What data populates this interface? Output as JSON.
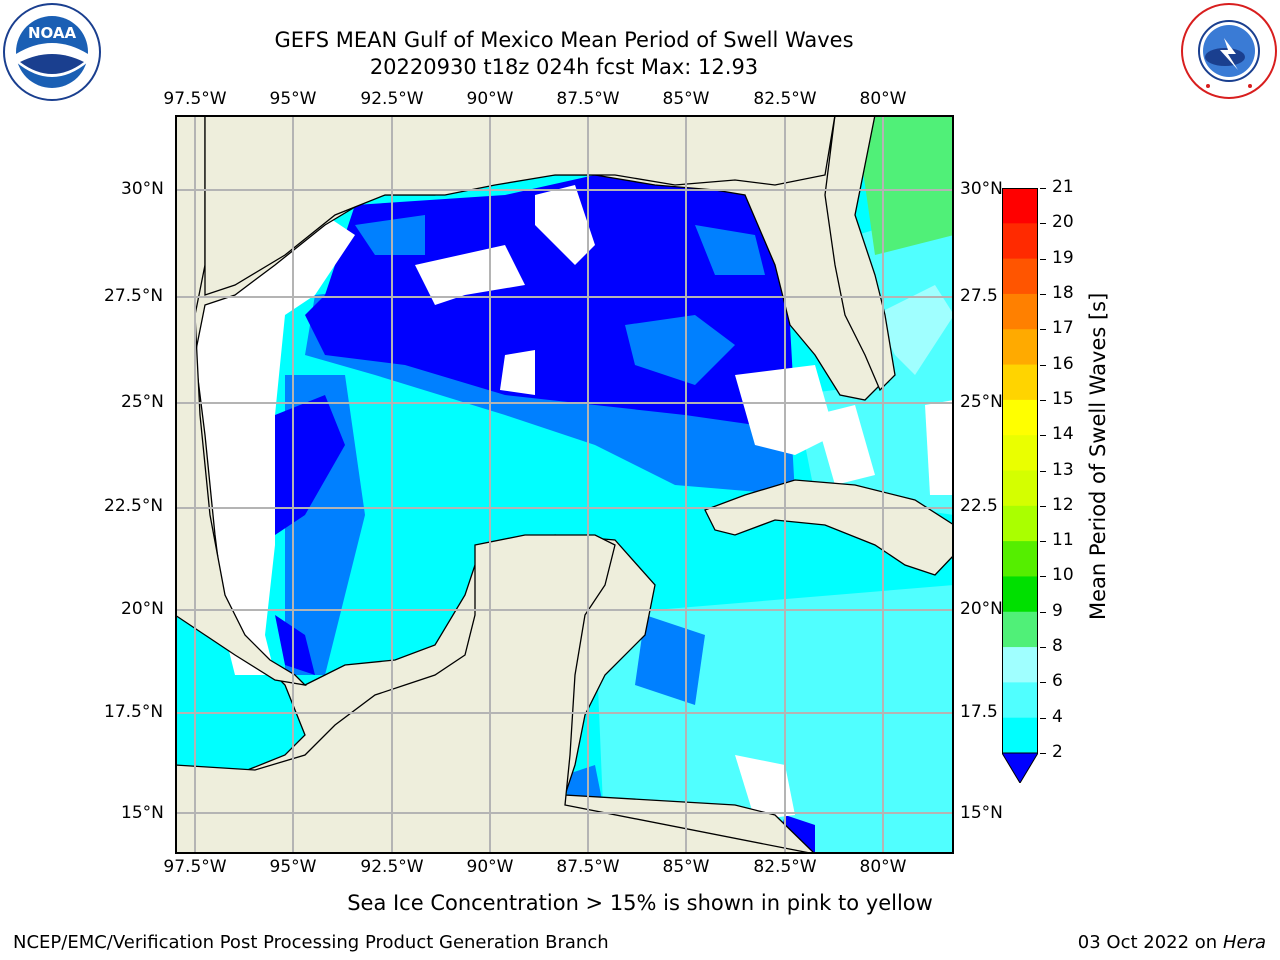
{
  "header": {
    "title_line1": "GEFS MEAN Gulf of Mexico Mean Period of Swell Waves",
    "title_line2": "20220930 t18z 024h fcst   Max: 12.93"
  },
  "logos": {
    "noaa_label": "NOAA",
    "noaa_ring_text": "NATIONAL OCEANIC AND ATMOSPHERIC ADMINISTRATION · U.S. DEPARTMENT OF COMMERCE",
    "nws_ring_text": "NATIONAL WEATHER SERVICE"
  },
  "map": {
    "lon_labels": [
      "97.5°W",
      "95°W",
      "92.5°W",
      "90°W",
      "87.5°W",
      "85°W",
      "82.5°W",
      "80°W"
    ],
    "lat_labels_left": [
      "30°N",
      "27.5°N",
      "25°N",
      "22.5°N",
      "20°N",
      "17.5°N",
      "15°N"
    ],
    "lat_labels_right": [
      "30°N",
      "27.5",
      "25°N",
      "22.5",
      "20°N",
      "17.5",
      "15°N"
    ],
    "colors": {
      "land": "#eeeedc",
      "no_data": "#ffffff",
      "grid": "#b4b4b4",
      "coast": "#000000"
    }
  },
  "colorbar": {
    "label": "Mean Period of Swell Waves [s]",
    "ticks": [
      "21",
      "20",
      "19",
      "18",
      "17",
      "16",
      "15",
      "14",
      "13",
      "12",
      "11",
      "10",
      "9",
      "8",
      "6",
      "4",
      "2"
    ],
    "colors": [
      "#ff0000",
      "#ff2a00",
      "#ff5500",
      "#ff8000",
      "#ffaa00",
      "#ffd400",
      "#ffff00",
      "#eaff00",
      "#d4ff00",
      "#aaff00",
      "#55ee00",
      "#00e000",
      "#50f078",
      "#a0ffff",
      "#50ffff",
      "#00ffff",
      "#0080ff",
      "#0000ff"
    ]
  },
  "notes": {
    "sea_ice": "Sea Ice Concentration > 15% is shown in pink to yellow"
  },
  "footer": {
    "left": "NCEP/EMC/Verification Post Processing Product Generation Branch",
    "date_prefix": "03 Oct 2022 on ",
    "machine": "Hera"
  }
}
